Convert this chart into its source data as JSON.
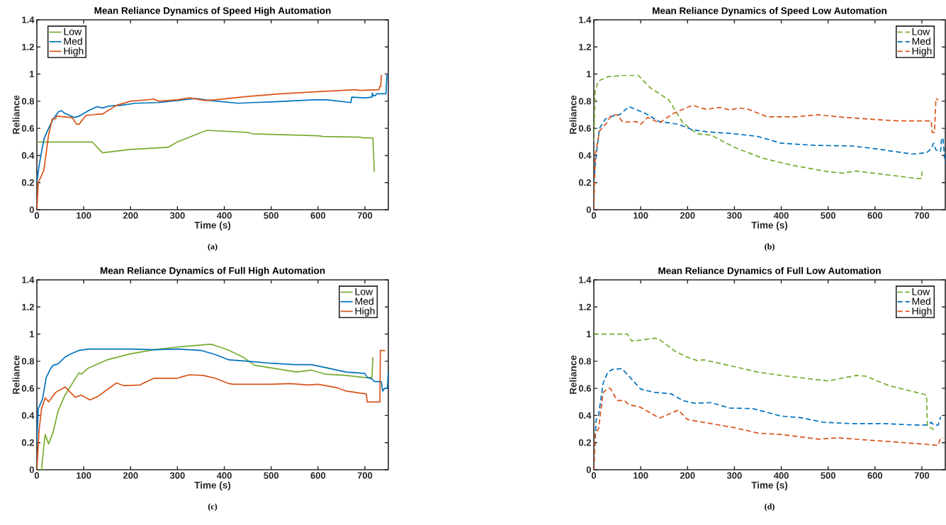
{
  "chart_data": [
    {
      "type": "line",
      "title": "Mean Reliance Dynamics of Speed High Automation",
      "xlabel": "Time (s)",
      "ylabel": "Reliance",
      "annotations": [
        "(a)"
      ],
      "xlim": [
        0,
        750
      ],
      "ylim": [
        0,
        1.4
      ],
      "xticks": [
        0,
        100,
        200,
        300,
        400,
        500,
        600,
        700
      ],
      "yticks": [
        0,
        0.2,
        0.4,
        0.6,
        0.8,
        1,
        1.2,
        1.4
      ],
      "legend": "top left",
      "line_style": "solid",
      "grid": false,
      "series": [
        {
          "name": "Low",
          "color": "#77ac30",
          "x": [
            0,
            118,
            140,
            200,
            280,
            300,
            362,
            450,
            460,
            600,
            610,
            690,
            695,
            717,
            720
          ],
          "values": [
            0.5,
            0.5,
            0.42,
            0.445,
            0.46,
            0.5,
            0.585,
            0.57,
            0.56,
            0.545,
            0.54,
            0.535,
            0.53,
            0.53,
            0.28
          ]
        },
        {
          "name": "Med",
          "color": "#0072bd",
          "x": [
            0,
            5,
            15,
            25,
            35,
            47,
            52,
            60,
            80,
            90,
            110,
            128,
            140,
            155,
            180,
            210,
            260,
            300,
            340,
            370,
            430,
            460,
            500,
            590,
            620,
            670,
            672,
            700,
            715,
            716,
            718,
            722,
            725,
            745,
            747,
            750
          ],
          "values": [
            0.2,
            0.33,
            0.52,
            0.6,
            0.67,
            0.725,
            0.73,
            0.71,
            0.68,
            0.69,
            0.73,
            0.76,
            0.75,
            0.765,
            0.77,
            0.785,
            0.79,
            0.805,
            0.82,
            0.805,
            0.785,
            0.79,
            0.795,
            0.81,
            0.81,
            0.79,
            0.83,
            0.825,
            0.83,
            0.86,
            0.84,
            0.84,
            0.855,
            0.855,
            0.99,
            0.99
          ]
        },
        {
          "name": "High",
          "color": "#d95319",
          "x": [
            0,
            3,
            15,
            25,
            33,
            40,
            42,
            75,
            85,
            90,
            105,
            120,
            130,
            140,
            170,
            200,
            250,
            260,
            300,
            325,
            360,
            380,
            450,
            520,
            600,
            680,
            690,
            730,
            732,
            734,
            735,
            737
          ],
          "values": [
            0,
            0.2,
            0.29,
            0.55,
            0.67,
            0.67,
            0.69,
            0.68,
            0.63,
            0.63,
            0.695,
            0.7,
            0.705,
            0.705,
            0.77,
            0.8,
            0.815,
            0.8,
            0.81,
            0.825,
            0.805,
            0.81,
            0.835,
            0.855,
            0.87,
            0.885,
            0.88,
            0.885,
            0.91,
            0.91,
            0.99,
            0.99
          ]
        }
      ]
    },
    {
      "type": "line",
      "title": "Mean Reliance Dynamics of Speed Low Automation",
      "xlabel": "Time (s)",
      "ylabel": "Reliance",
      "annotations": [
        "(b)"
      ],
      "xlim": [
        0,
        750
      ],
      "ylim": [
        0,
        1.4
      ],
      "xticks": [
        0,
        100,
        200,
        300,
        400,
        500,
        600,
        700
      ],
      "yticks": [
        0,
        0.2,
        0.4,
        0.6,
        0.8,
        1,
        1.2,
        1.4
      ],
      "legend": "top right",
      "line_style": "dashed",
      "grid": false,
      "series": [
        {
          "name": "Low",
          "color": "#77ac30",
          "x": [
            0,
            3,
            10,
            30,
            60,
            95,
            120,
            160,
            190,
            220,
            250,
            300,
            360,
            420,
            500,
            530,
            560,
            620,
            690,
            700,
            700
          ],
          "values": [
            0.5,
            0.88,
            0.95,
            0.98,
            0.99,
            0.99,
            0.9,
            0.81,
            0.64,
            0.56,
            0.55,
            0.46,
            0.38,
            0.33,
            0.28,
            0.27,
            0.285,
            0.26,
            0.23,
            0.23,
            0.3
          ]
        },
        {
          "name": "Med",
          "color": "#0072bd",
          "x": [
            0,
            5,
            12,
            25,
            40,
            55,
            75,
            110,
            140,
            180,
            210,
            240,
            300,
            350,
            400,
            470,
            550,
            600,
            680,
            710,
            720,
            725,
            730,
            740,
            742,
            745,
            748,
            750
          ],
          "values": [
            0.2,
            0.4,
            0.6,
            0.67,
            0.69,
            0.7,
            0.76,
            0.71,
            0.65,
            0.63,
            0.59,
            0.575,
            0.56,
            0.54,
            0.49,
            0.475,
            0.47,
            0.45,
            0.41,
            0.42,
            0.45,
            0.49,
            0.44,
            0.43,
            0.52,
            0.53,
            0.4,
            0.34
          ]
        },
        {
          "name": "High",
          "color": "#d95319",
          "x": [
            0,
            3,
            12,
            25,
            38,
            50,
            62,
            90,
            100,
            115,
            140,
            170,
            210,
            240,
            270,
            290,
            310,
            330,
            370,
            430,
            480,
            520,
            600,
            650,
            720,
            722,
            727,
            728,
            730,
            735
          ],
          "values": [
            0,
            0.4,
            0.58,
            0.63,
            0.7,
            0.7,
            0.645,
            0.65,
            0.63,
            0.68,
            0.64,
            0.71,
            0.77,
            0.74,
            0.755,
            0.735,
            0.75,
            0.74,
            0.685,
            0.685,
            0.7,
            0.685,
            0.665,
            0.655,
            0.655,
            0.57,
            0.57,
            0.65,
            0.82,
            0.81
          ]
        }
      ]
    },
    {
      "type": "line",
      "title": "Mean Reliance Dynamics of Full High Automation",
      "xlabel": "Time (s)",
      "ylabel": "Reliance",
      "annotations": [
        "(c)"
      ],
      "xlim": [
        0,
        750
      ],
      "ylim": [
        0,
        1.4
      ],
      "xticks": [
        0,
        100,
        200,
        300,
        400,
        500,
        600,
        700
      ],
      "yticks": [
        0,
        0.2,
        0.4,
        0.6,
        0.8,
        1,
        1.2,
        1.4
      ],
      "legend": "top right",
      "line_style": "solid",
      "grid": false,
      "series": [
        {
          "name": "Low",
          "color": "#77ac30",
          "x": [
            0,
            10,
            15,
            18,
            25,
            35,
            45,
            60,
            80,
            90,
            95,
            110,
            150,
            200,
            250,
            300,
            372,
            390,
            410,
            440,
            465,
            520,
            555,
            585,
            615,
            660,
            700,
            715,
            717
          ],
          "values": [
            0,
            0,
            0.18,
            0.26,
            0.19,
            0.28,
            0.43,
            0.55,
            0.66,
            0.715,
            0.705,
            0.75,
            0.81,
            0.855,
            0.885,
            0.905,
            0.925,
            0.905,
            0.88,
            0.83,
            0.77,
            0.74,
            0.72,
            0.735,
            0.705,
            0.695,
            0.68,
            0.68,
            0.83
          ]
        },
        {
          "name": "Med",
          "color": "#0072bd",
          "x": [
            0,
            3,
            12,
            20,
            30,
            35,
            45,
            60,
            70,
            90,
            110,
            145,
            200,
            250,
            300,
            350,
            380,
            410,
            450,
            500,
            550,
            585,
            620,
            660,
            700,
            705,
            715,
            720,
            735,
            738,
            742,
            748,
            750
          ],
          "values": [
            0.2,
            0.45,
            0.52,
            0.68,
            0.75,
            0.77,
            0.78,
            0.83,
            0.85,
            0.88,
            0.89,
            0.89,
            0.89,
            0.885,
            0.89,
            0.88,
            0.85,
            0.81,
            0.8,
            0.785,
            0.775,
            0.775,
            0.75,
            0.72,
            0.71,
            0.68,
            0.67,
            0.65,
            0.65,
            0.58,
            0.6,
            0.6,
            0.73
          ]
        },
        {
          "name": "High",
          "color": "#d95319",
          "x": [
            0,
            5,
            10,
            18,
            25,
            40,
            60,
            82,
            95,
            113,
            130,
            150,
            170,
            185,
            220,
            250,
            300,
            325,
            355,
            380,
            410,
            420,
            500,
            540,
            580,
            600,
            640,
            660,
            690,
            703,
            705,
            732,
            733,
            740,
            743
          ],
          "values": [
            0,
            0.3,
            0.45,
            0.53,
            0.5,
            0.57,
            0.61,
            0.535,
            0.55,
            0.515,
            0.54,
            0.59,
            0.64,
            0.62,
            0.625,
            0.675,
            0.675,
            0.7,
            0.695,
            0.675,
            0.635,
            0.63,
            0.63,
            0.635,
            0.625,
            0.63,
            0.605,
            0.58,
            0.565,
            0.56,
            0.5,
            0.5,
            0.88,
            0.88,
            0.875
          ]
        }
      ]
    },
    {
      "type": "line",
      "title": "Mean Reliance Dynamics of Full Low Automation",
      "xlabel": "Time (s)",
      "ylabel": "Reliance",
      "annotations": [
        "(d)"
      ],
      "xlim": [
        0,
        750
      ],
      "ylim": [
        0,
        1.4
      ],
      "xticks": [
        0,
        100,
        200,
        300,
        400,
        500,
        600,
        700
      ],
      "yticks": [
        0,
        0.2,
        0.4,
        0.6,
        0.8,
        1,
        1.2,
        1.4
      ],
      "legend": "top right",
      "line_style": "dashed",
      "grid": false,
      "series": [
        {
          "name": "Low",
          "color": "#77ac30",
          "x": [
            0,
            72,
            80,
            100,
            130,
            140,
            175,
            200,
            220,
            235,
            300,
            350,
            400,
            450,
            500,
            560,
            580,
            630,
            700,
            710,
            712,
            730
          ],
          "values": [
            1,
            1,
            0.95,
            0.955,
            0.97,
            0.96,
            0.87,
            0.83,
            0.805,
            0.81,
            0.76,
            0.72,
            0.695,
            0.675,
            0.655,
            0.695,
            0.69,
            0.62,
            0.56,
            0.55,
            0.32,
            0.29
          ]
        },
        {
          "name": "Med",
          "color": "#0072bd",
          "x": [
            0,
            5,
            10,
            20,
            30,
            40,
            60,
            80,
            100,
            130,
            165,
            190,
            215,
            250,
            290,
            340,
            400,
            440,
            490,
            550,
            620,
            680,
            710,
            720,
            725,
            735,
            740
          ],
          "values": [
            0,
            0.37,
            0.4,
            0.64,
            0.72,
            0.74,
            0.745,
            0.67,
            0.595,
            0.57,
            0.56,
            0.51,
            0.49,
            0.495,
            0.455,
            0.45,
            0.395,
            0.385,
            0.35,
            0.34,
            0.34,
            0.33,
            0.33,
            0.35,
            0.33,
            0.33,
            0.39
          ]
        },
        {
          "name": "High",
          "color": "#d95319",
          "x": [
            0,
            3,
            10,
            20,
            30,
            35,
            50,
            65,
            75,
            100,
            140,
            180,
            200,
            250,
            300,
            350,
            400,
            480,
            520,
            580,
            660,
            735,
            740,
            745
          ],
          "values": [
            0,
            0.27,
            0.3,
            0.57,
            0.6,
            0.6,
            0.51,
            0.51,
            0.48,
            0.46,
            0.38,
            0.44,
            0.37,
            0.34,
            0.31,
            0.27,
            0.26,
            0.225,
            0.235,
            0.22,
            0.2,
            0.18,
            0.235,
            0.235
          ]
        }
      ]
    }
  ]
}
